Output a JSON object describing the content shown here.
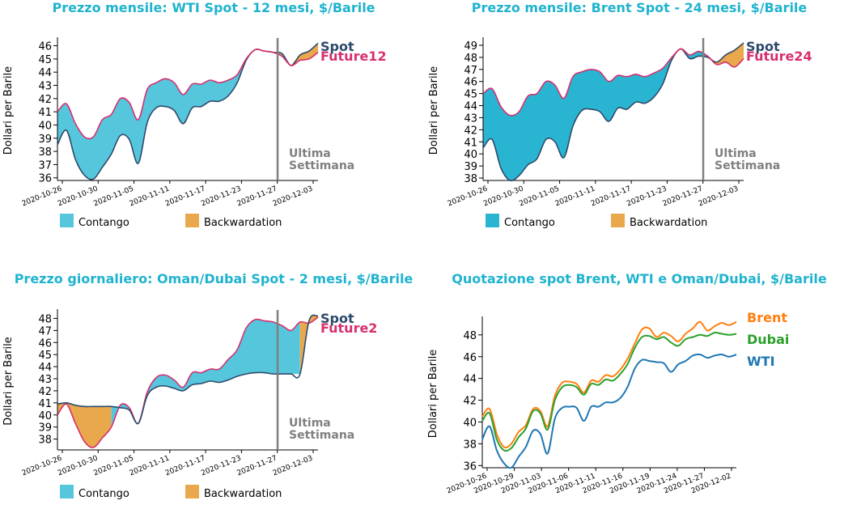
{
  "colors": {
    "title": "#1fb3cf",
    "contango": "#56c6dd",
    "contango_dark": "#29b5d1",
    "backwardation": "#e8a84b",
    "spot": "#2e4a6b",
    "future": "#d6306f",
    "week_line": "#808080",
    "brent": "#ff7f0e",
    "dubai": "#2ca02c",
    "wti": "#1f77b4"
  },
  "chart_data": [
    {
      "type": "area",
      "title": "Prezzo mensile: WTI Spot - 12 mesi, $/Barile",
      "ylabel": "Dollari per Barile",
      "xlabel": "",
      "ylim": [
        35.8,
        46.4
      ],
      "yticks": [
        36,
        37,
        38,
        39,
        40,
        41,
        42,
        43,
        44,
        45,
        46
      ],
      "xticks": [
        "2020-10-26",
        "2020-10-30",
        "2020-11-05",
        "2020-11-11",
        "2020-11-17",
        "2020-11-23",
        "2020-11-27",
        "2020-12-03"
      ],
      "x": [
        0,
        1,
        2,
        3,
        4,
        5,
        6,
        7,
        8,
        9,
        10,
        11,
        12,
        13,
        14,
        15,
        16,
        17,
        18,
        19,
        20,
        21,
        22,
        23,
        24,
        25,
        26,
        27,
        28,
        29
      ],
      "week_marker_index": 24.5,
      "week_label": [
        "Ultima",
        "Settimana"
      ],
      "series": [
        {
          "name": "Spot",
          "values": [
            38.5,
            39.6,
            37.4,
            36.2,
            35.9,
            36.8,
            37.8,
            39.2,
            38.9,
            37.1,
            40.2,
            41.3,
            41.4,
            41.1,
            40.1,
            41.3,
            41.4,
            41.8,
            41.8,
            42.2,
            43.2,
            44.9,
            45.7,
            45.6,
            45.5,
            45.4,
            44.5,
            45.3,
            45.6,
            46.2
          ]
        },
        {
          "name": "Future12",
          "values": [
            41.0,
            41.6,
            40.1,
            39.1,
            39.1,
            40.4,
            40.8,
            42.0,
            41.7,
            40.4,
            42.7,
            43.2,
            43.5,
            43.2,
            42.3,
            43.1,
            43.1,
            43.4,
            43.2,
            43.4,
            43.8,
            45.0,
            45.7,
            45.6,
            45.5,
            45.2,
            44.5,
            44.9,
            45.0,
            45.5
          ]
        }
      ],
      "legend": [
        "Contango",
        "Backwardation"
      ]
    },
    {
      "type": "area",
      "title": "Prezzo mensile: Brent Spot - 24 mesi, $/Barile",
      "ylabel": "Dollari per Barile",
      "xlabel": "",
      "ylim": [
        37.8,
        49.4
      ],
      "yticks": [
        38,
        39,
        40,
        41,
        42,
        43,
        44,
        45,
        46,
        47,
        48,
        49
      ],
      "xticks": [
        "2020-10-26",
        "2020-10-30",
        "2020-11-05",
        "2020-11-11",
        "2020-11-17",
        "2020-11-23",
        "2020-11-27",
        "2020-12-03"
      ],
      "x": [
        0,
        1,
        2,
        3,
        4,
        5,
        6,
        7,
        8,
        9,
        10,
        11,
        12,
        13,
        14,
        15,
        16,
        17,
        18,
        19,
        20,
        21,
        22,
        23,
        24,
        25,
        26,
        27,
        28,
        29
      ],
      "week_marker_index": 24.5,
      "week_label": [
        "Ultima",
        "Settimana"
      ],
      "series": [
        {
          "name": "Spot",
          "values": [
            40.5,
            41.2,
            38.8,
            37.8,
            38.2,
            39.1,
            39.6,
            41.2,
            41.0,
            39.7,
            42.3,
            43.6,
            43.7,
            43.5,
            42.7,
            43.8,
            43.7,
            44.3,
            44.2,
            44.7,
            45.8,
            47.8,
            48.7,
            47.9,
            48.1,
            48.0,
            47.6,
            48.2,
            48.6,
            49.2
          ]
        },
        {
          "name": "Future24",
          "values": [
            45.0,
            45.4,
            43.9,
            43.2,
            43.5,
            44.8,
            45.0,
            46.0,
            45.7,
            44.6,
            46.4,
            46.8,
            47.0,
            46.8,
            46.0,
            46.5,
            46.4,
            46.6,
            46.4,
            46.7,
            47.1,
            48.0,
            48.7,
            48.2,
            48.5,
            48.1,
            47.4,
            47.6,
            47.2,
            47.9
          ]
        }
      ],
      "legend": [
        "Contango",
        "Backwardation"
      ]
    },
    {
      "type": "area",
      "title": "Prezzo giornaliero: Oman/Dubai Spot - 2 mesi, $/Barile",
      "ylabel": "Dollari per Barile",
      "xlabel": "",
      "ylim": [
        37.1,
        48.5
      ],
      "yticks": [
        38,
        39,
        40,
        41,
        42,
        43,
        44,
        45,
        46,
        47,
        48
      ],
      "xticks": [
        "2020-10-26",
        "2020-10-30",
        "2020-11-05",
        "2020-11-11",
        "2020-11-17",
        "2020-11-23",
        "2020-11-27",
        "2020-12-03"
      ],
      "x": [
        0,
        1,
        2,
        3,
        4,
        5,
        6,
        7,
        8,
        9,
        10,
        11,
        12,
        13,
        14,
        15,
        16,
        17,
        18,
        19,
        20,
        21,
        22,
        23,
        24,
        25,
        26,
        27,
        28,
        29
      ],
      "week_marker_index": 24.5,
      "week_label": [
        "Ultima",
        "Settimana"
      ],
      "series": [
        {
          "name": "Future2",
          "values": [
            40.0,
            40.9,
            39.3,
            37.8,
            37.3,
            38.1,
            39.0,
            40.8,
            40.6,
            39.3,
            41.9,
            43.1,
            43.3,
            42.9,
            42.3,
            43.5,
            43.5,
            43.8,
            43.8,
            44.6,
            45.4,
            47.2,
            47.9,
            47.8,
            47.7,
            47.4,
            47.0,
            47.7,
            47.6,
            48.1
          ]
        },
        {
          "name": "Spot",
          "values": [
            40.9,
            41.0,
            40.8,
            40.7,
            40.7,
            40.7,
            40.7,
            40.6,
            40.4,
            39.3,
            41.6,
            42.3,
            42.4,
            42.2,
            42.0,
            42.5,
            42.6,
            42.8,
            42.7,
            42.9,
            43.2,
            43.4,
            43.5,
            43.5,
            43.4,
            43.4,
            43.4,
            43.4,
            47.8,
            48.2
          ]
        }
      ],
      "legend": [
        "Contango",
        "Backwardation"
      ]
    },
    {
      "type": "line",
      "title": "Quotazione spot Brent, WTI e Oman/Dubai, $/Barile",
      "ylabel": "Dollari per Barile",
      "xlabel": "",
      "ylim": [
        35.8,
        49.4
      ],
      "yticks": [
        36,
        38,
        40,
        42,
        44,
        46,
        48
      ],
      "xticks": [
        "2020-10-26",
        "2020-10-29",
        "2020-11-03",
        "2020-11-06",
        "2020-11-11",
        "2020-11-16",
        "2020-11-19",
        "2020-11-24",
        "2020-11-27",
        "2020-12-02"
      ],
      "x": [
        0,
        1,
        2,
        3,
        4,
        5,
        6,
        7,
        8,
        9,
        10,
        11,
        12,
        13,
        14,
        15,
        16,
        17,
        18,
        19,
        20,
        21,
        22,
        23,
        24,
        25,
        26,
        27,
        28,
        29,
        30,
        31,
        32,
        33,
        34,
        35
      ],
      "series": [
        {
          "name": "Brent",
          "values": [
            40.5,
            41.2,
            38.9,
            37.7,
            38.0,
            39.1,
            39.7,
            41.2,
            41.0,
            39.6,
            42.4,
            43.6,
            43.7,
            43.5,
            42.7,
            43.8,
            43.7,
            44.3,
            44.2,
            44.8,
            45.8,
            47.2,
            48.5,
            48.6,
            47.8,
            48.2,
            47.9,
            47.4,
            48.1,
            48.6,
            49.2,
            48.4,
            48.8,
            49.1,
            48.9,
            49.2
          ]
        },
        {
          "name": "Dubai",
          "values": [
            40.1,
            40.8,
            38.4,
            37.4,
            37.6,
            38.6,
            39.4,
            41.0,
            40.8,
            39.3,
            42.0,
            43.2,
            43.4,
            43.2,
            42.5,
            43.5,
            43.4,
            43.9,
            43.8,
            44.4,
            45.3,
            46.8,
            47.8,
            47.9,
            47.6,
            47.8,
            47.3,
            47.0,
            47.6,
            47.8,
            48.0,
            47.9,
            48.2,
            48.1,
            48.0,
            48.1
          ]
        },
        {
          "name": "WTI",
          "values": [
            38.4,
            39.6,
            37.4,
            36.2,
            35.8,
            36.8,
            37.7,
            39.2,
            38.9,
            37.1,
            40.3,
            41.3,
            41.4,
            41.3,
            40.1,
            41.4,
            41.4,
            41.8,
            41.8,
            42.2,
            43.2,
            44.9,
            45.7,
            45.6,
            45.5,
            45.4,
            44.6,
            45.3,
            45.6,
            46.1,
            46.2,
            45.9,
            46.1,
            46.2,
            46.0,
            46.2
          ]
        }
      ]
    }
  ]
}
